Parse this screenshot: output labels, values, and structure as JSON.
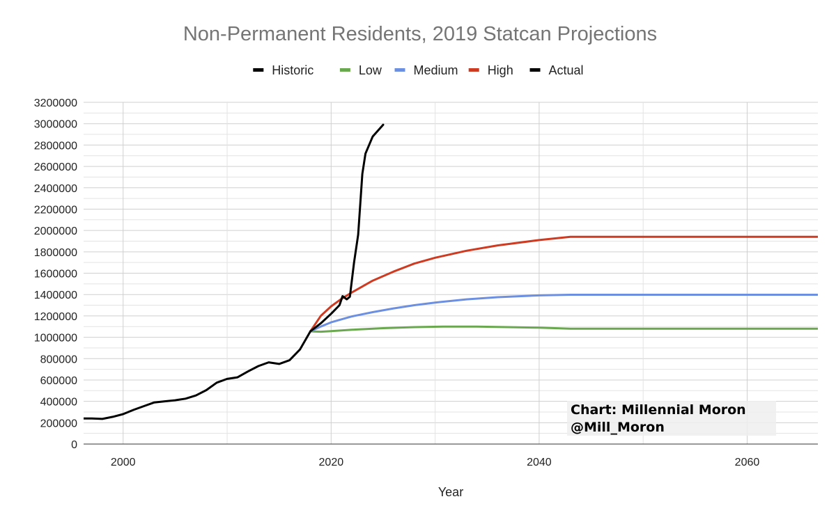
{
  "chart_data": {
    "type": "line",
    "title": "Non-Permanent Residents, 2019 Statcan Projections",
    "xlabel": "Year",
    "ylabel": "",
    "xlim": [
      1996.2,
      2066.8
    ],
    "ylim": [
      0,
      3200000
    ],
    "x_ticks": [
      2000,
      2020,
      2040,
      2060
    ],
    "y_ticks": [
      0,
      200000,
      400000,
      600000,
      800000,
      1000000,
      1200000,
      1400000,
      1600000,
      1800000,
      2000000,
      2200000,
      2400000,
      2600000,
      2800000,
      3000000,
      3200000
    ],
    "vertical_grid_minor": [
      2010,
      2030,
      2050
    ],
    "legend_position": "top",
    "series": [
      {
        "name": "Historic",
        "color": "#000000",
        "x": [
          1996,
          1997,
          1998,
          1999,
          2000,
          2001,
          2002,
          2003,
          2004,
          2005,
          2006,
          2007,
          2008,
          2009,
          2010,
          2011,
          2012,
          2013,
          2014,
          2015,
          2016,
          2017,
          2018
        ],
        "y": [
          240000,
          240000,
          235000,
          255000,
          280000,
          320000,
          355000,
          390000,
          400000,
          410000,
          425000,
          455000,
          505000,
          575000,
          610000,
          625000,
          680000,
          730000,
          765000,
          750000,
          785000,
          885000,
          1055000
        ]
      },
      {
        "name": "Low",
        "color": "#6aa84f",
        "x": [
          2018,
          2019,
          2020,
          2022,
          2025,
          2028,
          2031,
          2034,
          2037,
          2040,
          2043,
          2050,
          2060,
          2067
        ],
        "y": [
          1055000,
          1052000,
          1057000,
          1070000,
          1085000,
          1095000,
          1100000,
          1100000,
          1095000,
          1090000,
          1080000,
          1080000,
          1080000,
          1080000
        ]
      },
      {
        "name": "Medium",
        "color": "#6d8fe0",
        "x": [
          2018,
          2019,
          2020,
          2022,
          2024,
          2026,
          2028,
          2030,
          2033,
          2036,
          2040,
          2043,
          2050,
          2060,
          2067
        ],
        "y": [
          1055000,
          1100000,
          1140000,
          1195000,
          1235000,
          1270000,
          1300000,
          1325000,
          1355000,
          1375000,
          1392000,
          1398000,
          1398000,
          1398000,
          1398000
        ]
      },
      {
        "name": "High",
        "color": "#cc3b22",
        "x": [
          2018,
          2019,
          2020,
          2021,
          2022,
          2024,
          2026,
          2028,
          2030,
          2033,
          2036,
          2040,
          2043,
          2050,
          2060,
          2067
        ],
        "y": [
          1055000,
          1200000,
          1290000,
          1360000,
          1420000,
          1530000,
          1615000,
          1690000,
          1745000,
          1810000,
          1860000,
          1910000,
          1940000,
          1940000,
          1940000,
          1940000
        ]
      },
      {
        "name": "Actual",
        "color": "#000000",
        "x": [
          2018,
          2019,
          2020,
          2020.8,
          2021.1,
          2021.5,
          2021.8,
          2022.2,
          2022.6,
          2023,
          2023.3,
          2024,
          2025
        ],
        "y": [
          1055000,
          1130000,
          1220000,
          1300000,
          1385000,
          1355000,
          1380000,
          1700000,
          1960000,
          2530000,
          2720000,
          2880000,
          2990000
        ]
      }
    ],
    "annotation": {
      "line1": "Chart: Millennial Moron",
      "line2": "@Mill_Moron"
    }
  }
}
